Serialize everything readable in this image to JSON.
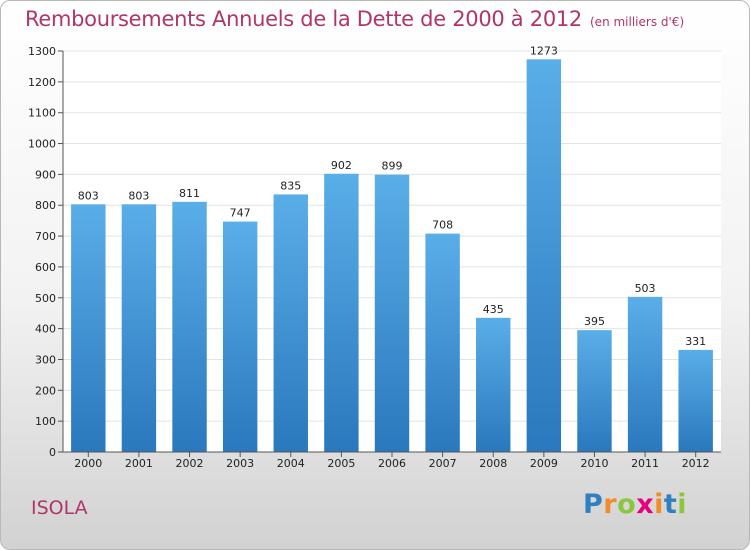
{
  "header": {
    "title": "Remboursements Annuels de la Dette de 2000 à 2012",
    "subtitle": "(en milliers d'€)"
  },
  "location": "ISOLA",
  "brand": {
    "letters": [
      {
        "char": "P",
        "color": "#2f7fc1"
      },
      {
        "char": "r",
        "color": "#f28c28"
      },
      {
        "char": "o",
        "color": "#8cc63f"
      },
      {
        "char": "x",
        "color": "#e6007e"
      },
      {
        "char": "i",
        "color": "#f28c28"
      },
      {
        "char": "t",
        "color": "#2f7fc1"
      },
      {
        "char": "i",
        "color": "#8cc63f"
      }
    ]
  },
  "colors": {
    "bar_top": "#5aaee8",
    "bar_bottom": "#2a78bd",
    "grid": "#e3e3e3",
    "axis": "#555555",
    "title": "#b0356a"
  },
  "chart_data": {
    "type": "bar",
    "categories": [
      "2000",
      "2001",
      "2002",
      "2003",
      "2004",
      "2005",
      "2006",
      "2007",
      "2008",
      "2009",
      "2010",
      "2011",
      "2012"
    ],
    "values": [
      803,
      803,
      811,
      747,
      835,
      902,
      899,
      708,
      435,
      1273,
      395,
      503,
      331
    ],
    "title": "Remboursements Annuels de la Dette de 2000 à 2012",
    "subtitle": "(en milliers d'€)",
    "ylim": [
      0,
      1300
    ],
    "yticks": [
      0,
      100,
      200,
      300,
      400,
      500,
      600,
      700,
      800,
      900,
      1000,
      1100,
      1200,
      1300
    ],
    "grid": true,
    "data_labels": true
  }
}
